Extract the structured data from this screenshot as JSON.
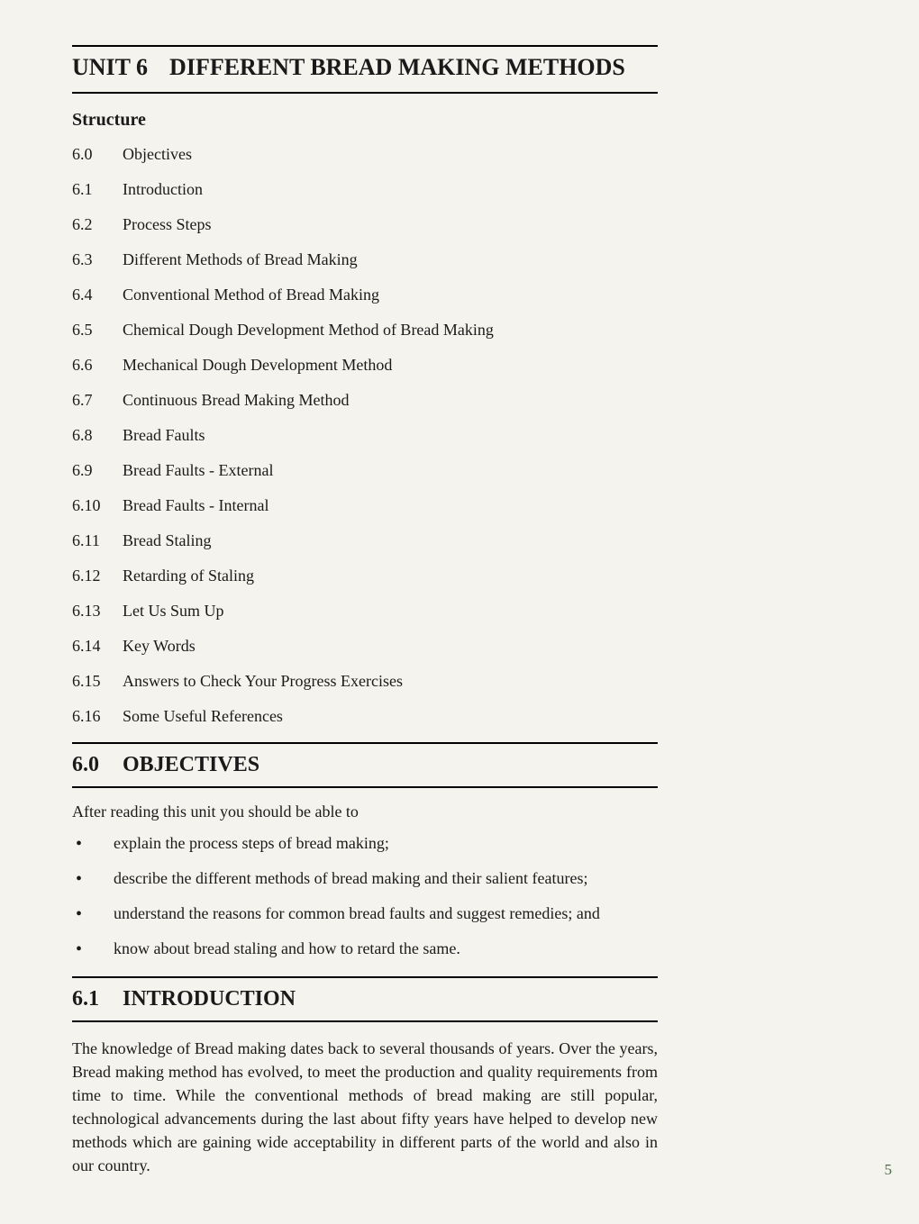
{
  "unit_label": "UNIT 6",
  "unit_title": "DIFFERENT BREAD MAKING METHODS",
  "structure_heading": "Structure",
  "toc": [
    {
      "num": "6.0",
      "label": "Objectives"
    },
    {
      "num": "6.1",
      "label": "Introduction"
    },
    {
      "num": "6.2",
      "label": "Process Steps"
    },
    {
      "num": "6.3",
      "label": "Different Methods of Bread Making"
    },
    {
      "num": "6.4",
      "label": "Conventional Method of Bread Making"
    },
    {
      "num": "6.5",
      "label": "Chemical Dough Development Method of Bread Making"
    },
    {
      "num": "6.6",
      "label": "Mechanical Dough Development Method"
    },
    {
      "num": "6.7",
      "label": "Continuous Bread Making Method"
    },
    {
      "num": "6.8",
      "label": "Bread Faults"
    },
    {
      "num": "6.9",
      "label": "Bread Faults - External"
    },
    {
      "num": "6.10",
      "label": "Bread Faults - Internal"
    },
    {
      "num": "6.11",
      "label": "Bread Staling"
    },
    {
      "num": "6.12",
      "label": "Retarding of Staling"
    },
    {
      "num": "6.13",
      "label": "Let Us Sum Up"
    },
    {
      "num": "6.14",
      "label": "Key Words"
    },
    {
      "num": "6.15",
      "label": "Answers to Check Your Progress Exercises"
    },
    {
      "num": "6.16",
      "label": "Some Useful References"
    }
  ],
  "sections": {
    "objectives": {
      "num": "6.0",
      "title": "OBJECTIVES",
      "lead": "After reading this unit you should be able to",
      "bullets": [
        "explain the process steps of bread making;",
        "describe the different methods of bread making and their salient features;",
        "understand the reasons for common bread faults and suggest remedies; and",
        "know about bread staling and how to retard the same."
      ]
    },
    "introduction": {
      "num": "6.1",
      "title": "INTRODUCTION",
      "para": "The knowledge of Bread making dates back to several thousands of years. Over the years, Bread making method has evolved, to meet the production and quality requirements from time to time. While the conventional methods of bread making are still popular, technological advancements during the last about fifty years have helped to develop new methods which are gaining wide acceptability in different parts of the world and also in our country."
    }
  },
  "page_number": "5"
}
